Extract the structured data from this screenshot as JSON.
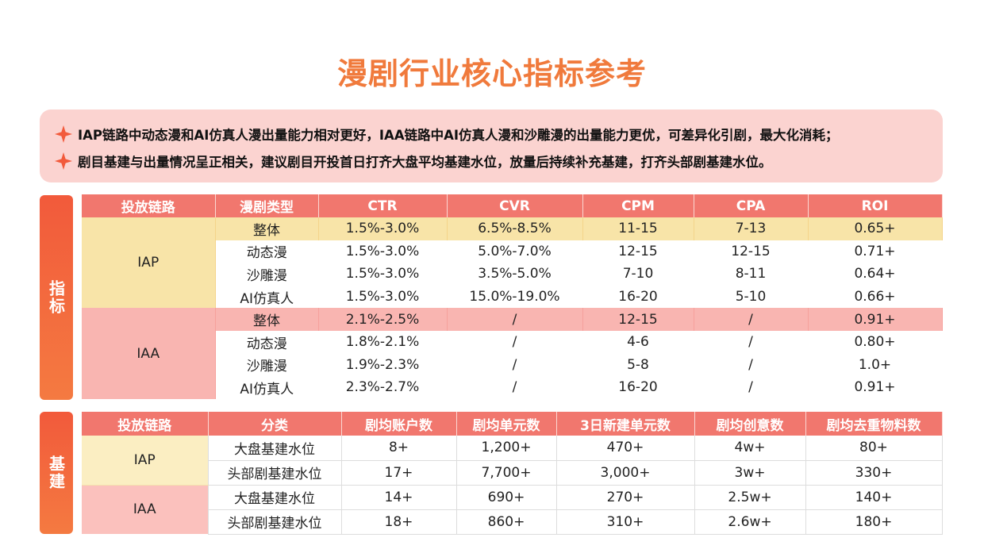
{
  "title": "漫剧行业核心指标参考",
  "notes": [
    "IAP链路中动态漫和AI仿真人漫出量能力相对更好，IAA链路中AI仿真人漫和沙雕漫的出量能力更优，可差异化引剧，最大化消耗；",
    "剧目基建与出量情况呈正相关，建议剧目开投首日打齐大盘平均基建水位，放量后持续补充基建，打齐头部剧基建水位。"
  ],
  "tabs": {
    "metrics": "指标",
    "infra": "基建"
  },
  "colors": {
    "accent": "#f1776e",
    "title": "#f07a3c",
    "iap_bg": "#fbeec2",
    "iaa_bg": "#fbc1bd"
  },
  "metrics_table": {
    "headers": [
      "投放链路",
      "漫剧类型",
      "CTR",
      "CVR",
      "CPM",
      "CPA",
      "ROI"
    ],
    "groups": [
      {
        "name": "IAP",
        "rows": [
          [
            "整体",
            "1.5%-3.0%",
            "6.5%-8.5%",
            "11-15",
            "7-13",
            "0.65+"
          ],
          [
            "动态漫",
            "1.5%-3.0%",
            "5.0%-7.0%",
            "12-15",
            "12-15",
            "0.71+"
          ],
          [
            "沙雕漫",
            "1.5%-3.0%",
            "3.5%-5.0%",
            "7-10",
            "8-11",
            "0.64+"
          ],
          [
            "AI仿真人",
            "1.5%-3.0%",
            "15.0%-19.0%",
            "16-20",
            "5-10",
            "0.66+"
          ]
        ]
      },
      {
        "name": "IAA",
        "rows": [
          [
            "整体",
            "2.1%-2.5%",
            "/",
            "12-15",
            "/",
            "0.91+"
          ],
          [
            "动态漫",
            "1.8%-2.1%",
            "/",
            "4-6",
            "/",
            "0.80+"
          ],
          [
            "沙雕漫",
            "1.9%-2.3%",
            "/",
            "5-8",
            "/",
            "1.0+"
          ],
          [
            "AI仿真人",
            "2.3%-2.7%",
            "/",
            "16-20",
            "/",
            "0.91+"
          ]
        ]
      }
    ]
  },
  "infra_table": {
    "headers": [
      "投放链路",
      "分类",
      "剧均账户数",
      "剧均单元数",
      "3日新建单元数",
      "剧均创意数",
      "剧均去重物料数"
    ],
    "groups": [
      {
        "name": "IAP",
        "rows": [
          [
            "大盘基建水位",
            "8+",
            "1,200+",
            "470+",
            "4w+",
            "80+"
          ],
          [
            "头部剧基建水位",
            "17+",
            "7,700+",
            "3,000+",
            "3w+",
            "330+"
          ]
        ]
      },
      {
        "name": "IAA",
        "rows": [
          [
            "大盘基建水位",
            "14+",
            "690+",
            "270+",
            "2.5w+",
            "140+"
          ],
          [
            "头部剧基建水位",
            "18+",
            "860+",
            "310+",
            "2.6w+",
            "180+"
          ]
        ]
      }
    ]
  }
}
